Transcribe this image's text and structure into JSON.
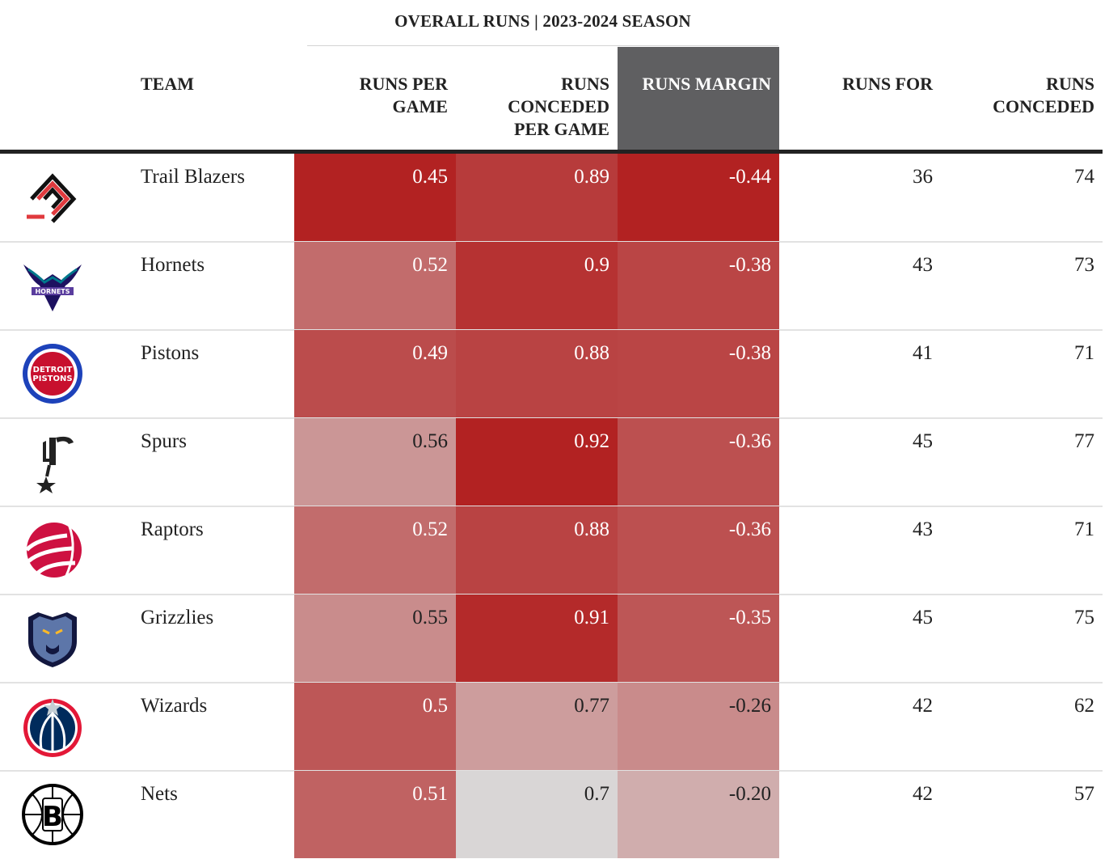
{
  "chart_data": {
    "type": "table",
    "title": "OVERALL RUNS | 2023-2024 SEASON",
    "columns": [
      "TEAM",
      "RUNS PER GAME",
      "RUNS CONCEDED PER GAME",
      "RUNS MARGIN",
      "RUNS FOR",
      "RUNS CONCEDED"
    ],
    "highlighted_column": "RUNS MARGIN",
    "rows": [
      {
        "team": "Trail Blazers",
        "logo": "trail-blazers-logo",
        "runs_per_game": "0.45",
        "runs_conceded_per_game": "0.89",
        "runs_margin": "-0.44",
        "runs_for": "36",
        "runs_conceded": "74"
      },
      {
        "team": "Hornets",
        "logo": "hornets-logo",
        "runs_per_game": "0.52",
        "runs_conceded_per_game": "0.9",
        "runs_margin": "-0.38",
        "runs_for": "43",
        "runs_conceded": "73"
      },
      {
        "team": "Pistons",
        "logo": "pistons-logo",
        "runs_per_game": "0.49",
        "runs_conceded_per_game": "0.88",
        "runs_margin": "-0.38",
        "runs_for": "41",
        "runs_conceded": "71"
      },
      {
        "team": "Spurs",
        "logo": "spurs-logo",
        "runs_per_game": "0.56",
        "runs_conceded_per_game": "0.92",
        "runs_margin": "-0.36",
        "runs_for": "45",
        "runs_conceded": "77"
      },
      {
        "team": "Raptors",
        "logo": "raptors-logo",
        "runs_per_game": "0.52",
        "runs_conceded_per_game": "0.88",
        "runs_margin": "-0.36",
        "runs_for": "43",
        "runs_conceded": "71"
      },
      {
        "team": "Grizzlies",
        "logo": "grizzlies-logo",
        "runs_per_game": "0.55",
        "runs_conceded_per_game": "0.91",
        "runs_margin": "-0.35",
        "runs_for": "45",
        "runs_conceded": "75"
      },
      {
        "team": "Wizards",
        "logo": "wizards-logo",
        "runs_per_game": "0.5",
        "runs_conceded_per_game": "0.77",
        "runs_margin": "-0.26",
        "runs_for": "42",
        "runs_conceded": "62"
      },
      {
        "team": "Nets",
        "logo": "nets-logo",
        "runs_per_game": "0.51",
        "runs_conceded_per_game": "0.7",
        "runs_margin": "-0.20",
        "runs_for": "42",
        "runs_conceded": "57"
      }
    ]
  },
  "header": {
    "team": "TEAM",
    "runs_per_game": [
      "RUNS PER",
      "GAME"
    ],
    "runs_conceded_per_game": [
      "RUNS",
      "CONCEDED",
      "PER GAME"
    ],
    "runs_margin": [
      "RUNS MARGIN"
    ],
    "runs_for": [
      "RUNS FOR"
    ],
    "runs_conceded": [
      "RUNS",
      "CONCEDED"
    ]
  },
  "colors": {
    "header_highlight": "#5f5f61",
    "cell_good": "#b22222",
    "cell_neutral": "#d9d6d6",
    "text_on_dark": "#ffffff",
    "text_on_light": "#222222"
  }
}
